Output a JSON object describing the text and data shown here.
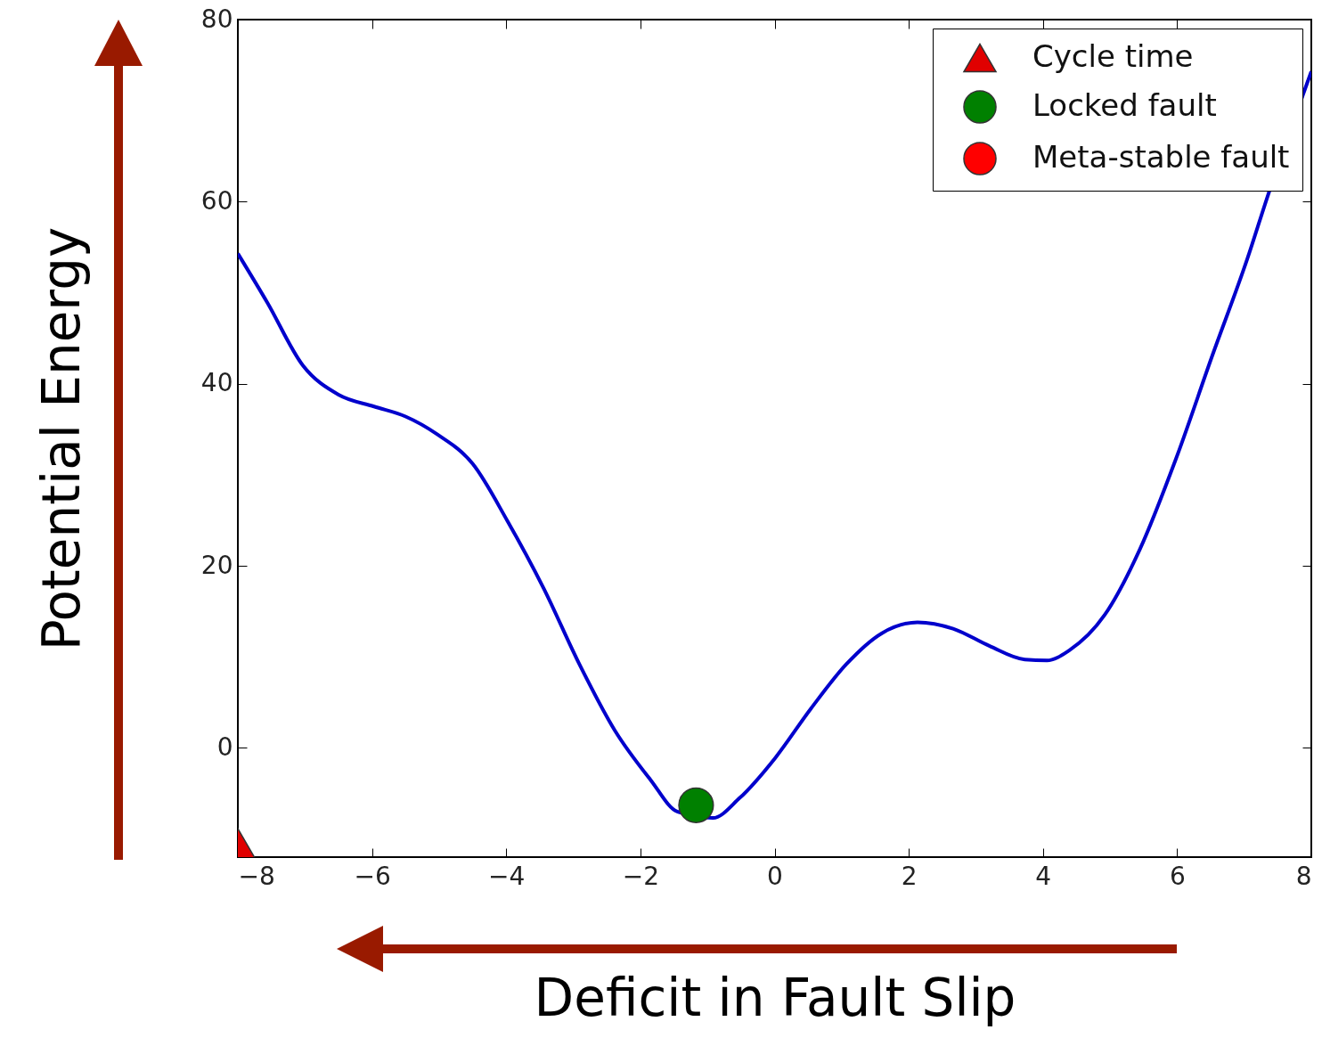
{
  "chart_data": {
    "type": "line",
    "xlabel": "Deficit in Fault Slip",
    "ylabel": "Potential Energy",
    "xlim": [
      -8,
      8
    ],
    "xticks": [
      -8,
      -6,
      -4,
      -2,
      0,
      2,
      4,
      6,
      8
    ],
    "ylim": [
      -12,
      80
    ],
    "yticks": [
      0,
      20,
      40,
      60,
      80
    ],
    "grid": false,
    "legend": "top right",
    "series": [
      {
        "color": "#0000cc",
        "line_style": "solid",
        "marker": "none",
        "x": [
          -8,
          -7.56,
          -7.03,
          -6.5,
          -5.97,
          -5.5,
          -5.04,
          -4.5,
          -3.98,
          -3.44,
          -2.91,
          -2.38,
          -1.85,
          -1.45,
          -0.92,
          -0.52,
          0.01,
          0.54,
          1.07,
          1.6,
          2.13,
          2.66,
          3.2,
          3.73,
          4.06,
          4.39,
          4.92,
          5.45,
          5.98,
          6.52,
          7.05,
          7.34,
          8
        ],
        "values": [
          54.3,
          48.9,
          42.0,
          38.8,
          37.5,
          36.4,
          34.5,
          31.2,
          24.9,
          17.5,
          9.2,
          1.9,
          -3.5,
          -7.0,
          -7.7,
          -5.5,
          -1.1,
          4.3,
          9.2,
          12.6,
          13.8,
          13.1,
          11.2,
          9.7,
          9.6,
          10.7,
          14.6,
          21.9,
          31.7,
          43.0,
          53.8,
          60.4,
          74.3
        ]
      },
      {
        "type": "scatter",
        "name": "Cycle time",
        "color": "#e00000",
        "marker": "triangle",
        "x": [
          -8
        ],
        "values": [
          -10.5
        ]
      },
      {
        "type": "scatter",
        "name": "Locked fault",
        "color": "#008000",
        "marker": "circle",
        "x": [
          -1.17
        ],
        "values": [
          -6.3
        ]
      },
      {
        "type": "scatter",
        "name": "Meta-stable fault",
        "color": "#ff0000",
        "marker": "circle"
      }
    ]
  }
}
